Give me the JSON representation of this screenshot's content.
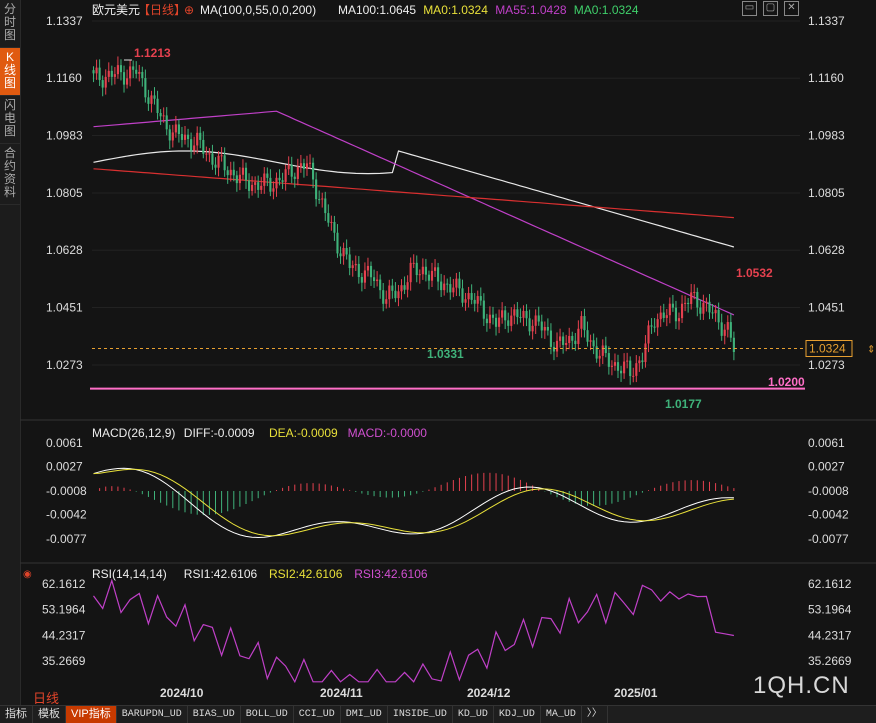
{
  "sidebar": {
    "tabs": [
      {
        "label": "分时图",
        "active": false
      },
      {
        "label": "K线图",
        "active": true
      },
      {
        "label": "闪电图",
        "active": false
      },
      {
        "label": "合约资料",
        "active": false
      }
    ]
  },
  "header": {
    "symbol": "欧元美元",
    "period_tag": "【日线】",
    "add_icon": "plus-circle-icon",
    "ma_label": "MA(100,0,55,0,0,200)",
    "ma100": "MA100:1.0645",
    "ma0a": "MA0:1.0324",
    "ma55": "MA55:1.0428",
    "ma0b": "MA0:1.0324"
  },
  "colors": {
    "up": "#e5414f",
    "down": "#3fb27a",
    "ma100": "#e8e8e8",
    "ma55": "#c040c8",
    "ma200": "#d93030",
    "support": "#ff6ec7",
    "dif": "#ffffff",
    "dea": "#e8e03a",
    "macd_label": "#d050d0",
    "rsi": "#c040c8"
  },
  "price_axis": {
    "left_ticks": [
      "1.1337",
      "1.1160",
      "1.0983",
      "1.0805",
      "1.0628",
      "1.0451",
      "1.0273"
    ],
    "right_ticks": [
      "1.1337",
      "1.1160",
      "1.0983",
      "1.0805",
      "1.0628",
      "1.0451",
      "1.0273"
    ],
    "tick_values": [
      1.1337,
      1.116,
      1.0983,
      1.0805,
      1.0628,
      1.0451,
      1.0273
    ],
    "last_price": "1.0324",
    "last_price_value": 1.0324
  },
  "annotations": {
    "high": "1.1213",
    "low_nov": "1.0331",
    "recent_high": "1.0532",
    "recent_low": "1.0177",
    "support": "1.0200"
  },
  "macd": {
    "label": "MACD(26,12,9)",
    "diff": "DIFF:-0.0009",
    "dea": "DEA:-0.0009",
    "macd": "MACD:-0.0000",
    "ticks": [
      "0.0061",
      "0.0027",
      "-0.0008",
      "-0.0042",
      "-0.0077"
    ],
    "tick_values": [
      0.0061,
      0.0027,
      -0.0008,
      -0.0042,
      -0.0077
    ]
  },
  "rsi": {
    "label": "RSI(14,14,14)",
    "rsi1": "RSI1:42.6106",
    "rsi2": "RSI2:42.6106",
    "rsi3": "RSI3:42.6106",
    "ticks": [
      "62.1612",
      "53.1964",
      "44.2317",
      "35.2669"
    ],
    "tick_values": [
      62.1612,
      53.1964,
      44.2317,
      35.2669
    ]
  },
  "time_axis": [
    "2024/10",
    "2024/11",
    "2024/12",
    "2025/01"
  ],
  "period_label": "日线",
  "watermark": "1QH.CN",
  "bottom_tabs": [
    "指标",
    "模板",
    "VIP指标",
    "BARUPDN_UD",
    "BIAS_UD",
    "BOLL_UD",
    "CCI_UD",
    "DMI_UD",
    "INSIDE_UD",
    "KD_UD",
    "KDJ_UD",
    "MA_UD",
    "〉〉"
  ]
}
